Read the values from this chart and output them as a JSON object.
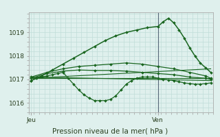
{
  "title": "Pression niveau de la mer( hPa )",
  "bg_color": "#dff0ed",
  "grid_color": "#c0ddd8",
  "line_color": "#1a6620",
  "x_ticks_labels": [
    "Jeu",
    "Ven"
  ],
  "x_ticks_pos": [
    0,
    24
  ],
  "ylim": [
    1015.6,
    1019.85
  ],
  "yticks": [
    1016,
    1017,
    1018,
    1019
  ],
  "xlim": [
    -0.5,
    34.5
  ],
  "vline_x": 24,
  "series": [
    {
      "x": [
        0,
        1,
        2,
        3,
        4,
        5,
        6,
        7,
        8,
        9,
        10,
        11,
        12,
        13,
        14,
        15,
        16,
        17,
        18,
        19,
        20,
        21,
        22,
        23,
        24,
        25,
        26,
        27,
        28,
        29,
        30,
        31,
        32,
        33,
        34
      ],
      "y": [
        1016.95,
        1017.05,
        1017.1,
        1017.15,
        1017.2,
        1017.25,
        1017.3,
        1017.05,
        1016.8,
        1016.55,
        1016.35,
        1016.2,
        1016.1,
        1016.1,
        1016.1,
        1016.15,
        1016.3,
        1016.55,
        1016.8,
        1016.95,
        1017.05,
        1017.1,
        1017.1,
        1017.1,
        1017.05,
        1017.0,
        1016.98,
        1016.95,
        1016.9,
        1016.85,
        1016.82,
        1016.8,
        1016.8,
        1016.82,
        1016.85
      ],
      "marker": "D",
      "ms": 2.0,
      "lw": 0.9,
      "color": "#1a6620"
    },
    {
      "x": [
        0,
        3,
        6,
        9,
        12,
        15,
        18,
        21,
        24,
        27,
        30,
        33,
        34
      ],
      "y": [
        1017.05,
        1017.25,
        1017.35,
        1017.4,
        1017.38,
        1017.38,
        1017.35,
        1017.3,
        1017.25,
        1017.2,
        1017.1,
        1017.05,
        1017.0
      ],
      "marker": "D",
      "ms": 2.0,
      "lw": 0.9,
      "color": "#1a6620"
    },
    {
      "x": [
        0,
        3,
        6,
        9,
        12,
        15,
        18,
        21,
        24,
        27,
        30,
        33,
        34
      ],
      "y": [
        1017.1,
        1017.3,
        1017.45,
        1017.55,
        1017.6,
        1017.65,
        1017.7,
        1017.65,
        1017.55,
        1017.45,
        1017.3,
        1017.15,
        1017.05
      ],
      "marker": "D",
      "ms": 2.0,
      "lw": 0.9,
      "color": "#1a6620"
    },
    {
      "x": [
        0,
        2,
        4,
        6,
        8,
        10,
        12,
        14,
        16,
        18,
        20,
        22,
        24,
        25,
        26,
        27,
        28,
        29,
        30,
        31,
        32,
        33,
        34
      ],
      "y": [
        1016.95,
        1017.15,
        1017.4,
        1017.65,
        1017.9,
        1018.15,
        1018.4,
        1018.65,
        1018.85,
        1019.0,
        1019.1,
        1019.2,
        1019.25,
        1019.45,
        1019.6,
        1019.4,
        1019.1,
        1018.75,
        1018.35,
        1018.0,
        1017.7,
        1017.5,
        1017.3
      ],
      "marker": "D",
      "ms": 2.0,
      "lw": 1.1,
      "color": "#1a6620"
    },
    {
      "x": [
        0,
        34
      ],
      "y": [
        1017.05,
        1017.45
      ],
      "marker": null,
      "ms": 0,
      "lw": 0.8,
      "color": "#1a6620"
    },
    {
      "x": [
        0,
        34
      ],
      "y": [
        1017.05,
        1017.05
      ],
      "marker": null,
      "ms": 0,
      "lw": 0.8,
      "color": "#1a6620"
    },
    {
      "x": [
        0,
        34
      ],
      "y": [
        1017.1,
        1016.95
      ],
      "marker": null,
      "ms": 0,
      "lw": 0.8,
      "color": "#1a6620"
    }
  ]
}
